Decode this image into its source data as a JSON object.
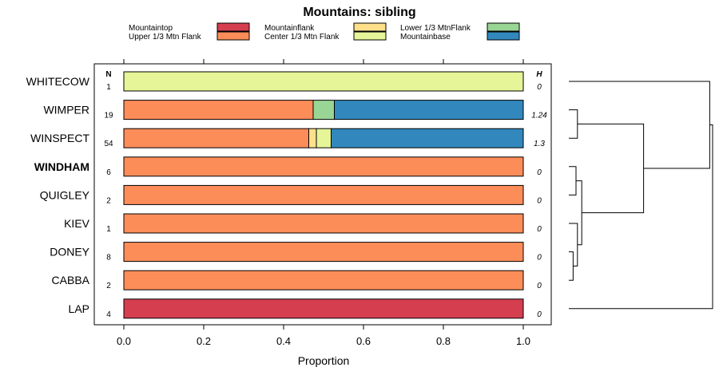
{
  "chart_data": {
    "type": "bar",
    "stacked": true,
    "orientation": "horizontal",
    "title": "Mountains: sibling",
    "xlabel": "Proportion",
    "xlim": [
      0,
      1
    ],
    "xticks": [
      "0.0",
      "0.2",
      "0.4",
      "0.6",
      "0.8",
      "1.0"
    ],
    "n_header": "N",
    "h_header": "H",
    "legend": [
      {
        "name": "Mountaintop",
        "color": "#d53e4f"
      },
      {
        "name": "Upper 1/3 Mtn Flank",
        "color": "#fc8d59"
      },
      {
        "name": "Mountainflank",
        "color": "#fee08b"
      },
      {
        "name": "Center 1/3 Mtn Flank",
        "color": "#e6f598"
      },
      {
        "name": "Lower 1/3 MtnFlank",
        "color": "#99d594"
      },
      {
        "name": "Mountainbase",
        "color": "#3288bd"
      }
    ],
    "rows": [
      {
        "label": "WHITECOW",
        "bold": false,
        "n": "1",
        "h": "0",
        "segments": [
          0,
          0,
          0,
          1,
          0,
          0
        ]
      },
      {
        "label": "WIMPER",
        "bold": false,
        "n": "19",
        "h": "1.24",
        "segments": [
          0,
          0.474,
          0,
          0,
          0.053,
          0.473
        ]
      },
      {
        "label": "WINSPECT",
        "bold": false,
        "n": "54",
        "h": "1.3",
        "segments": [
          0,
          0.463,
          0.019,
          0.037,
          0,
          0.481
        ]
      },
      {
        "label": "WINDHAM",
        "bold": true,
        "n": "6",
        "h": "0",
        "segments": [
          0,
          1,
          0,
          0,
          0,
          0
        ]
      },
      {
        "label": "QUIGLEY",
        "bold": false,
        "n": "2",
        "h": "0",
        "segments": [
          0,
          1,
          0,
          0,
          0,
          0
        ]
      },
      {
        "label": "KIEV",
        "bold": false,
        "n": "1",
        "h": "0",
        "segments": [
          0,
          1,
          0,
          0,
          0,
          0
        ]
      },
      {
        "label": "DONEY",
        "bold": false,
        "n": "8",
        "h": "0",
        "segments": [
          0,
          1,
          0,
          0,
          0,
          0
        ]
      },
      {
        "label": "CABBA",
        "bold": false,
        "n": "2",
        "h": "0",
        "segments": [
          0,
          1,
          0,
          0,
          0,
          0
        ]
      },
      {
        "label": "LAP",
        "bold": false,
        "n": "4",
        "h": "0",
        "segments": [
          1,
          0,
          0,
          0,
          0,
          0
        ]
      }
    ],
    "dendrogram": {
      "merges": [
        {
          "a": "r3",
          "b": "r4",
          "height": 0.05
        },
        {
          "a": "r6",
          "b": "r7",
          "height": 0.03
        },
        {
          "a": "r5",
          "b": "m1",
          "height": 0.06
        },
        {
          "a": "m0",
          "b": "m2",
          "height": 0.09
        },
        {
          "a": "r1",
          "b": "r2",
          "height": 0.06
        },
        {
          "a": "m4",
          "b": "m3",
          "height": 0.52
        },
        {
          "a": "r0",
          "b": "m5",
          "height": 0.98
        },
        {
          "a": "m6",
          "b": "r8",
          "height": 1.0
        }
      ]
    }
  }
}
